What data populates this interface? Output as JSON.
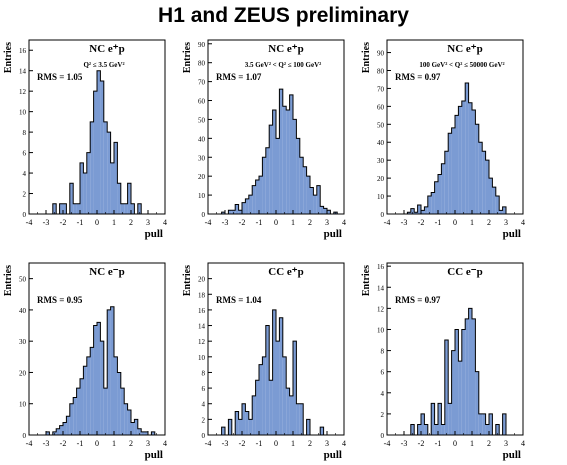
{
  "title": "H1 and ZEUS preliminary",
  "style": {
    "bar_fill": "#7b9bd3",
    "bar_edge": "#000000"
  },
  "axis_labels": {
    "x": "pull",
    "y": "Entries"
  },
  "chart_data": [
    {
      "type": "bar",
      "header": "NC e⁺p",
      "cut": "Q² ≤ 3.5 GeV²",
      "rms": "RMS = 1.05",
      "xlim": [
        -4,
        4
      ],
      "ylim": [
        0,
        17
      ],
      "x_ticks": [
        -4,
        -3,
        -2,
        -1,
        0,
        1,
        2,
        3,
        4
      ],
      "y_ticks": [
        0,
        2,
        4,
        6,
        8,
        10,
        12,
        14,
        16
      ],
      "bin_width": 0.2,
      "bin_edges_start": -2.8,
      "values": [
        0,
        1,
        0,
        1,
        1,
        0,
        3,
        1,
        1,
        5,
        4,
        6,
        9,
        12,
        14,
        13,
        9,
        8,
        5,
        7,
        3,
        1,
        1,
        3,
        1,
        0,
        1,
        0
      ]
    },
    {
      "type": "bar",
      "header": "NC e⁺p",
      "cut": "3.5 GeV² < Q² ≤ 100 GeV²",
      "rms": "RMS = 1.07",
      "xlim": [
        -4,
        4
      ],
      "ylim": [
        0,
        92
      ],
      "x_ticks": [
        -4,
        -3,
        -2,
        -1,
        0,
        1,
        2,
        3,
        4
      ],
      "y_ticks": [
        0,
        10,
        20,
        30,
        40,
        50,
        60,
        70,
        80,
        90
      ],
      "bin_width": 0.2,
      "bin_edges_start": -3.2,
      "values": [
        1,
        0,
        2,
        2,
        5,
        2,
        6,
        8,
        10,
        15,
        18,
        20,
        30,
        35,
        47,
        55,
        40,
        66,
        57,
        55,
        63,
        50,
        40,
        30,
        25,
        20,
        14,
        10,
        15,
        4,
        3,
        2,
        0,
        1
      ]
    },
    {
      "type": "bar",
      "header": "NC e⁺p",
      "cut": "100 GeV² < Q² ≤ 50000 GeV²",
      "rms": "RMS = 0.97",
      "xlim": [
        -4,
        4
      ],
      "ylim": [
        0,
        97
      ],
      "x_ticks": [
        -4,
        -3,
        -2,
        -1,
        0,
        1,
        2,
        3,
        4
      ],
      "y_ticks": [
        0,
        10,
        20,
        30,
        40,
        50,
        60,
        70,
        80,
        90
      ],
      "bin_width": 0.2,
      "bin_edges_start": -2.8,
      "values": [
        1,
        3,
        1,
        5,
        2,
        4,
        10,
        12,
        18,
        22,
        28,
        35,
        45,
        48,
        55,
        60,
        63,
        73,
        62,
        58,
        50,
        40,
        35,
        30,
        20,
        15,
        10,
        2,
        4
      ]
    },
    {
      "type": "bar",
      "header": "NC e⁻p",
      "cut": "",
      "rms": "RMS = 0.95",
      "xlim": [
        -4,
        4
      ],
      "ylim": [
        0,
        55
      ],
      "x_ticks": [
        -4,
        -3,
        -2,
        -1,
        0,
        1,
        2,
        3,
        4
      ],
      "y_ticks": [
        0,
        10,
        20,
        30,
        40,
        50
      ],
      "bin_width": 0.2,
      "bin_edges_start": -3.0,
      "values": [
        1,
        0,
        1,
        2,
        3,
        4,
        6,
        10,
        12,
        15,
        18,
        22,
        25,
        28,
        35,
        36,
        30,
        15,
        40,
        41,
        25,
        20,
        15,
        10,
        8,
        4,
        5,
        2,
        1,
        1,
        0,
        1
      ]
    },
    {
      "type": "bar",
      "header": "CC e⁺p",
      "cut": "",
      "rms": "RMS = 1.04",
      "xlim": [
        -4,
        4
      ],
      "ylim": [
        0,
        22
      ],
      "x_ticks": [
        -4,
        -3,
        -2,
        -1,
        0,
        1,
        2,
        3,
        4
      ],
      "y_ticks": [
        0,
        2,
        4,
        6,
        8,
        10,
        12,
        14,
        16,
        18,
        20
      ],
      "bin_width": 0.2,
      "bin_edges_start": -3.2,
      "values": [
        1,
        0,
        2,
        0,
        3,
        2,
        4,
        3,
        2,
        5,
        7,
        9,
        10,
        14,
        7,
        16,
        12,
        15,
        10,
        6,
        5,
        12,
        4,
        4,
        0,
        2,
        0,
        0,
        0,
        1
      ]
    },
    {
      "type": "bar",
      "header": "CC e⁻p",
      "cut": "",
      "rms": "RMS = 0.97",
      "xlim": [
        -4,
        4
      ],
      "ylim": [
        0,
        16.3
      ],
      "x_ticks": [
        -4,
        -3,
        -2,
        -1,
        0,
        1,
        2,
        3,
        4
      ],
      "y_ticks": [
        0,
        2,
        4,
        6,
        8,
        10,
        12,
        14,
        16
      ],
      "bin_width": 0.2,
      "bin_edges_start": -2.6,
      "values": [
        1,
        0,
        1,
        2,
        1,
        0,
        3,
        1,
        3,
        1,
        9,
        3,
        8,
        10,
        7,
        10,
        11,
        12,
        11,
        6,
        2,
        2,
        1,
        2,
        0,
        1,
        0,
        2
      ]
    }
  ]
}
